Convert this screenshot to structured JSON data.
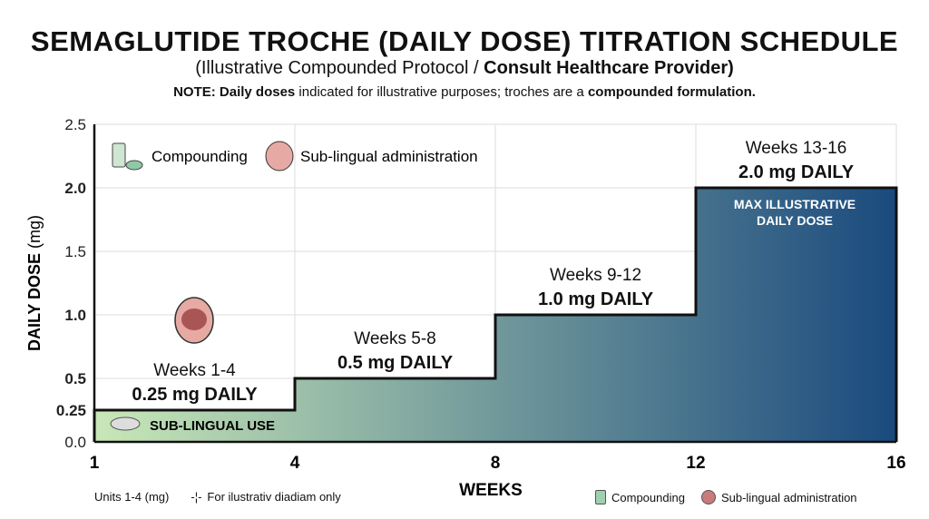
{
  "title": "SEMAGLUTIDE TROCHE (DAILY DOSE) TITRATION SCHEDULE",
  "subtitle_plain": "(Illustrative Compounded Protocol / ",
  "subtitle_bold": "Consult Healthcare Provider)",
  "note": {
    "p1": "NOTE: Daily doses",
    "p2": " indicated for illustrative purposes; troches are a ",
    "p3": "compounded formulation."
  },
  "legend_top": {
    "compounding": "Compounding",
    "sublingual": "Sub-lingual administration"
  },
  "footer": {
    "units": "Units 1-4 (mg)",
    "illustrative": "For ilustrativ diadiam only",
    "compounding": "Compounding",
    "sublingual": "Sub-lingual administration"
  },
  "chart_data": {
    "type": "area",
    "step": true,
    "xlabel": "WEEKS",
    "ylabel_bold": "DAILY DOSE",
    "ylabel_unit": "(mg)",
    "x_ticks": [
      "1",
      "4",
      "8",
      "12",
      "16"
    ],
    "y_ticks": [
      "0.0",
      "0.25",
      "0.5",
      "1.0",
      "1.5",
      "2.0",
      "2.5"
    ],
    "ylim": [
      0,
      2.5
    ],
    "grid": true,
    "gradient_colors": [
      "#c9e8b8",
      "#1a4a7e"
    ],
    "steps": [
      {
        "start": 1,
        "end": 4,
        "dose": 0.25,
        "weeks_label": "Weeks 1-4",
        "dose_label": "0.25 mg DAILY",
        "inner_label": "SUB-LINGUAL USE"
      },
      {
        "start": 4,
        "end": 8,
        "dose": 0.5,
        "weeks_label": "Weeks 5-8",
        "dose_label": "0.5 mg DAILY"
      },
      {
        "start": 8,
        "end": 12,
        "dose": 1.0,
        "weeks_label": "Weeks 9-12",
        "dose_label": "1.0 mg DAILY"
      },
      {
        "start": 12,
        "end": 16,
        "dose": 2.0,
        "weeks_label": "Weeks 13-16",
        "dose_label": "2.0 mg DAILY",
        "inner_label": "MAX ILLUSTRATIVE DAILY DOSE"
      }
    ]
  }
}
